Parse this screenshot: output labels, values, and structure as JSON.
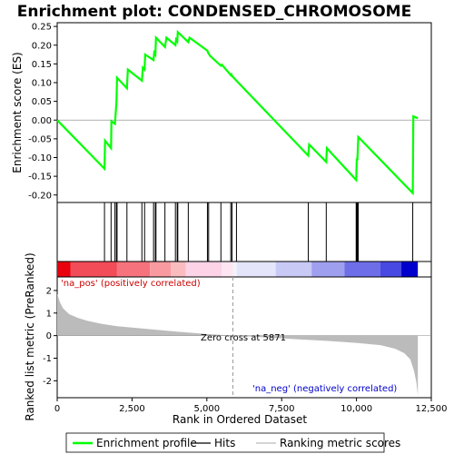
{
  "chart_data": {
    "type": "line",
    "title": "Enrichment plot: CONDENSED_CHROMOSOME",
    "es_panel": {
      "ylabel": "Enrichment score (ES)",
      "ylim": [
        -0.22,
        0.26
      ],
      "yticks": [
        -0.2,
        -0.15,
        -0.1,
        -0.05,
        0.0,
        0.05,
        0.1,
        0.15,
        0.2,
        0.25
      ],
      "ytick_labels": [
        "-0.20",
        "-0.15",
        "-0.10",
        "-0.05",
        "0.00",
        "0.05",
        "0.10",
        "0.15",
        "0.20",
        "0.25"
      ],
      "series_name": "Enrichment profile",
      "color": "#00ff00",
      "points": [
        [
          0,
          0.0
        ],
        [
          1580,
          -0.13
        ],
        [
          1600,
          -0.055
        ],
        [
          1800,
          -0.075
        ],
        [
          1810,
          -0.003
        ],
        [
          1930,
          -0.01
        ],
        [
          1980,
          0.05
        ],
        [
          2000,
          0.113
        ],
        [
          2330,
          0.085
        ],
        [
          2360,
          0.135
        ],
        [
          2830,
          0.105
        ],
        [
          2860,
          0.14
        ],
        [
          2920,
          0.135
        ],
        [
          2940,
          0.175
        ],
        [
          3220,
          0.16
        ],
        [
          3240,
          0.18
        ],
        [
          3280,
          0.175
        ],
        [
          3300,
          0.22
        ],
        [
          3600,
          0.195
        ],
        [
          3650,
          0.22
        ],
        [
          3950,
          0.2
        ],
        [
          3970,
          0.215
        ],
        [
          4010,
          0.21
        ],
        [
          4030,
          0.235
        ],
        [
          4380,
          0.208
        ],
        [
          4420,
          0.22
        ],
        [
          5020,
          0.185
        ],
        [
          5040,
          0.18
        ],
        [
          5060,
          0.178
        ],
        [
          5100,
          0.172
        ],
        [
          5470,
          0.145
        ],
        [
          5500,
          0.148
        ],
        [
          5800,
          0.12
        ],
        [
          5820,
          0.122
        ],
        [
          5840,
          0.118
        ],
        [
          5990,
          0.105
        ],
        [
          8390,
          -0.095
        ],
        [
          8420,
          -0.065
        ],
        [
          8990,
          -0.112
        ],
        [
          9010,
          -0.075
        ],
        [
          9990,
          -0.16
        ],
        [
          10010,
          -0.105
        ],
        [
          10030,
          -0.105
        ],
        [
          10060,
          -0.045
        ],
        [
          11880,
          -0.195
        ],
        [
          11900,
          0.01
        ],
        [
          12050,
          0.005
        ]
      ]
    },
    "hits": [
      1580,
      1800,
      1930,
      1980,
      2000,
      2330,
      2830,
      2920,
      3220,
      3280,
      3300,
      3600,
      3950,
      4010,
      4030,
      4380,
      5020,
      5060,
      5470,
      5800,
      5840,
      5990,
      8390,
      8990,
      9990,
      10010,
      10030,
      10060,
      11880
    ],
    "heatmap_band": {
      "segments": [
        {
          "from": 0,
          "to": 450,
          "color": "#e8000f"
        },
        {
          "from": 450,
          "to": 2000,
          "color": "#f24c58"
        },
        {
          "from": 2000,
          "to": 3100,
          "color": "#f6727c"
        },
        {
          "from": 3100,
          "to": 3800,
          "color": "#f99aa0"
        },
        {
          "from": 3800,
          "to": 4300,
          "color": "#fbbcc0"
        },
        {
          "from": 4300,
          "to": 5500,
          "color": "#fdd3e8"
        },
        {
          "from": 5500,
          "to": 5871,
          "color": "#fde6f2"
        },
        {
          "from": 5871,
          "to": 6000,
          "color": "#f2f2fb"
        },
        {
          "from": 6000,
          "to": 7300,
          "color": "#e4e4fb"
        },
        {
          "from": 7300,
          "to": 8500,
          "color": "#c9c9f6"
        },
        {
          "from": 8500,
          "to": 9600,
          "color": "#9f9ff0"
        },
        {
          "from": 9600,
          "to": 10800,
          "color": "#6e6ee8"
        },
        {
          "from": 10800,
          "to": 11500,
          "color": "#4848e2"
        },
        {
          "from": 11500,
          "to": 12050,
          "color": "#0000cc"
        }
      ]
    },
    "metric_panel": {
      "ylabel": "Ranked list metric (PreRanked)",
      "ylim": [
        -2.75,
        2.6
      ],
      "yticks": [
        -2,
        -1,
        0,
        1,
        2
      ],
      "ytick_labels": [
        "-2",
        "-1",
        "0",
        "1",
        "2"
      ],
      "series_name": "Ranking metric scores",
      "color": "#bbbbbb",
      "points": [
        [
          0,
          1.85
        ],
        [
          100,
          1.45
        ],
        [
          200,
          1.2
        ],
        [
          400,
          0.95
        ],
        [
          700,
          0.78
        ],
        [
          1000,
          0.66
        ],
        [
          1500,
          0.52
        ],
        [
          2000,
          0.42
        ],
        [
          3000,
          0.3
        ],
        [
          4000,
          0.18
        ],
        [
          5000,
          0.07
        ],
        [
          5871,
          0.0
        ],
        [
          7000,
          -0.08
        ],
        [
          8000,
          -0.16
        ],
        [
          9000,
          -0.23
        ],
        [
          10000,
          -0.32
        ],
        [
          10800,
          -0.42
        ],
        [
          11300,
          -0.58
        ],
        [
          11600,
          -0.78
        ],
        [
          11800,
          -1.05
        ],
        [
          11920,
          -1.55
        ],
        [
          12000,
          -2.05
        ],
        [
          12050,
          -2.65
        ]
      ],
      "zero_cross": 5871
    },
    "x_axis": {
      "xlabel": "Rank in Ordered Dataset",
      "xlim": [
        0,
        12500
      ],
      "xticks": [
        0,
        2500,
        5000,
        7500,
        10000,
        12500
      ],
      "xtick_labels": [
        "0",
        "2,500",
        "5,000",
        "7,500",
        "10,000",
        "12,500"
      ]
    },
    "annotations": {
      "pos_label": "'na_pos' (positively correlated)",
      "neg_label": "'na_neg' (negatively correlated)",
      "zero_label": "Zero cross at 5871"
    },
    "legend": {
      "placement": "bottom",
      "items": [
        {
          "label": "Enrichment profile",
          "color": "#00ff00",
          "kind": "thick-line"
        },
        {
          "label": "Hits",
          "color": "#000000",
          "kind": "line"
        },
        {
          "label": "Ranking metric scores",
          "color": "#bbbbbb",
          "kind": "line"
        }
      ]
    }
  }
}
